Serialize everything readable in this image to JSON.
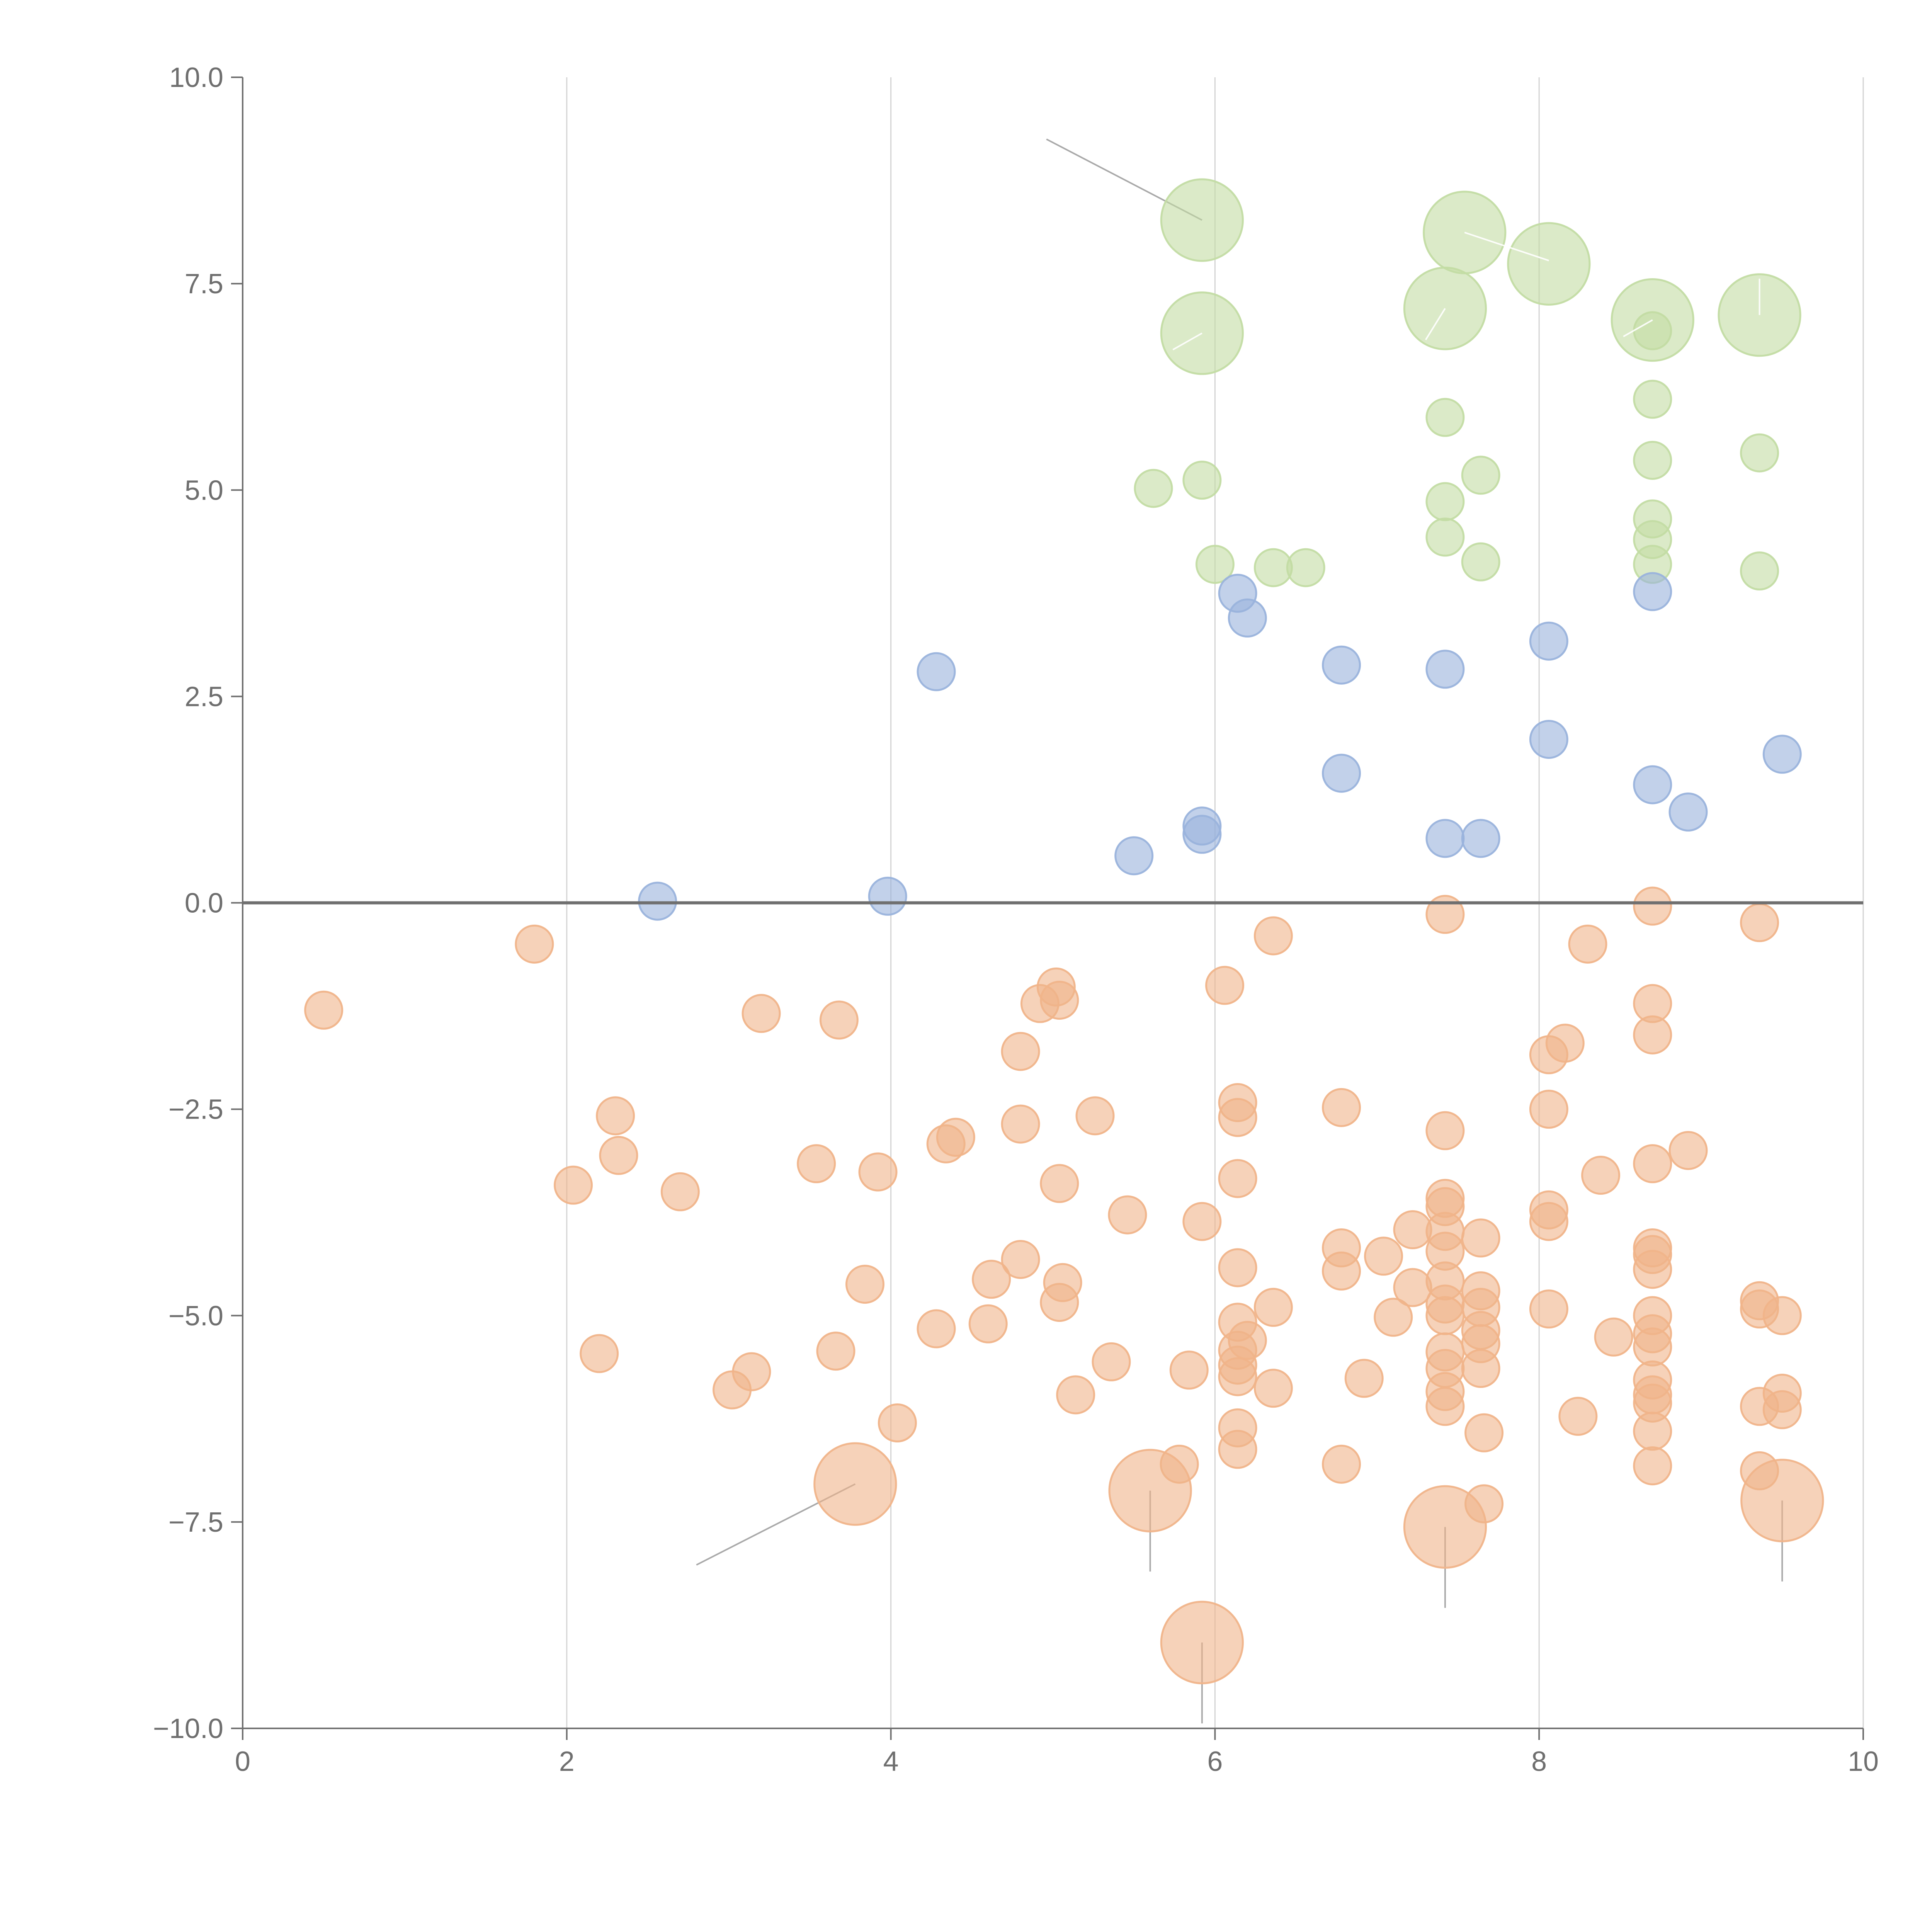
{
  "colors": {
    "positive": "#9ab3dc",
    "negative": "#f0b48a",
    "high": "#c3dca4",
    "axis": "#6f6f6f",
    "grid": "#d3d3d3"
  },
  "chart_data": {
    "type": "scatter",
    "title": "",
    "xlabel": "",
    "ylabel": "",
    "xlim": [
      0,
      10
    ],
    "ylim": [
      -10,
      10
    ],
    "x_ticks": [
      0,
      2,
      4,
      6,
      8,
      10
    ],
    "y_ticks": [
      10.0,
      7.5,
      5.0,
      2.5,
      0.0,
      -2.5,
      -5.0,
      -7.5,
      -10.0
    ],
    "x_tick_labels": [
      "0",
      "2",
      "4",
      "6",
      "8",
      "10"
    ],
    "y_tick_labels": [
      "10.0",
      "7.5",
      "5.0",
      "2.5",
      "0.0",
      "−2.5",
      "−5.0",
      "−7.5",
      "−10.0"
    ],
    "grid": {
      "x": true,
      "y": false
    },
    "zero_line": true,
    "legend": false,
    "series": [
      {
        "color_key": "high",
        "points": [
          [
            5.62,
            5.02,
            1
          ],
          [
            5.92,
            5.12,
            1
          ],
          [
            6.0,
            4.1,
            1
          ],
          [
            6.36,
            4.06,
            1
          ],
          [
            6.56,
            4.06,
            1
          ],
          [
            7.42,
            5.88,
            1
          ],
          [
            7.42,
            4.86,
            1
          ],
          [
            7.42,
            4.43,
            1
          ],
          [
            7.64,
            5.18,
            1
          ],
          [
            7.64,
            4.13,
            1
          ],
          [
            8.7,
            6.93,
            1
          ],
          [
            8.7,
            6.1,
            1
          ],
          [
            8.7,
            5.36,
            1
          ],
          [
            8.7,
            4.65,
            1
          ],
          [
            8.7,
            4.4,
            1
          ],
          [
            8.7,
            4.1,
            1
          ],
          [
            9.36,
            5.45,
            1
          ],
          [
            9.36,
            4.02,
            1
          ],
          [
            5.92,
            8.27,
            2.2
          ],
          [
            5.92,
            6.9,
            2.2
          ],
          [
            7.42,
            7.2,
            2.2
          ],
          [
            7.54,
            8.12,
            2.2
          ],
          [
            8.06,
            7.74,
            2.2
          ],
          [
            8.7,
            7.06,
            2.2
          ],
          [
            9.36,
            7.12,
            2.2
          ]
        ]
      },
      {
        "color_key": "positive",
        "points": [
          [
            2.56,
            0.02,
            1
          ],
          [
            3.98,
            0.08,
            1
          ],
          [
            4.28,
            2.8,
            1
          ],
          [
            5.5,
            0.57,
            1
          ],
          [
            5.92,
            0.93,
            1
          ],
          [
            5.92,
            0.83,
            1
          ],
          [
            6.14,
            3.75,
            1
          ],
          [
            6.2,
            3.45,
            1
          ],
          [
            6.78,
            2.88,
            1
          ],
          [
            6.78,
            1.57,
            1
          ],
          [
            7.42,
            2.83,
            1
          ],
          [
            7.42,
            0.78,
            1
          ],
          [
            7.64,
            0.78,
            1
          ],
          [
            8.06,
            3.17,
            1
          ],
          [
            8.06,
            1.98,
            1
          ],
          [
            8.7,
            3.77,
            1
          ],
          [
            8.7,
            1.43,
            1
          ],
          [
            8.92,
            1.1,
            1
          ],
          [
            9.5,
            1.8,
            1
          ]
        ]
      },
      {
        "color_key": "negative",
        "points": [
          [
            0.5,
            -1.3,
            1
          ],
          [
            1.8,
            -0.5,
            1
          ],
          [
            2.04,
            -3.42,
            1
          ],
          [
            2.2,
            -5.46,
            1
          ],
          [
            2.3,
            -2.58,
            1
          ],
          [
            2.32,
            -3.06,
            1
          ],
          [
            2.7,
            -3.5,
            1
          ],
          [
            3.02,
            -5.9,
            1
          ],
          [
            3.14,
            -5.68,
            1
          ],
          [
            3.2,
            -1.34,
            1
          ],
          [
            3.54,
            -3.16,
            1
          ],
          [
            3.66,
            -5.43,
            1
          ],
          [
            3.68,
            -1.42,
            1
          ],
          [
            3.84,
            -4.62,
            1
          ],
          [
            3.92,
            -3.26,
            1
          ],
          [
            4.04,
            -6.3,
            1
          ],
          [
            4.28,
            -5.16,
            1
          ],
          [
            4.34,
            -2.92,
            1
          ],
          [
            4.4,
            -2.84,
            1
          ],
          [
            4.6,
            -5.1,
            1
          ],
          [
            4.62,
            -4.56,
            1
          ],
          [
            4.8,
            -1.8,
            1
          ],
          [
            4.8,
            -2.68,
            1
          ],
          [
            4.8,
            -4.32,
            1
          ],
          [
            4.92,
            -1.22,
            1
          ],
          [
            5.02,
            -1.02,
            1
          ],
          [
            5.04,
            -1.18,
            1
          ],
          [
            5.04,
            -3.4,
            1
          ],
          [
            5.04,
            -4.84,
            1
          ],
          [
            5.06,
            -4.6,
            1
          ],
          [
            5.14,
            -5.96,
            1
          ],
          [
            5.26,
            -2.58,
            1
          ],
          [
            5.36,
            -5.56,
            1
          ],
          [
            5.46,
            -3.78,
            1
          ],
          [
            5.78,
            -6.8,
            1
          ],
          [
            5.84,
            -5.66,
            1
          ],
          [
            5.92,
            -3.86,
            1
          ],
          [
            6.06,
            -1.0,
            1
          ],
          [
            6.14,
            -2.42,
            1
          ],
          [
            6.14,
            -2.6,
            1
          ],
          [
            6.14,
            -3.34,
            1
          ],
          [
            6.14,
            -4.42,
            1
          ],
          [
            6.14,
            -5.08,
            1
          ],
          [
            6.14,
            -5.42,
            1
          ],
          [
            6.14,
            -5.6,
            1
          ],
          [
            6.14,
            -5.74,
            1
          ],
          [
            6.14,
            -6.36,
            1
          ],
          [
            6.14,
            -6.62,
            1
          ],
          [
            6.2,
            -5.3,
            1
          ],
          [
            6.36,
            -0.4,
            1
          ],
          [
            6.36,
            -4.9,
            1
          ],
          [
            6.36,
            -5.88,
            1
          ],
          [
            6.78,
            -2.48,
            1
          ],
          [
            6.78,
            -4.18,
            1
          ],
          [
            6.78,
            -4.46,
            1
          ],
          [
            6.78,
            -6.8,
            1
          ],
          [
            6.92,
            -5.76,
            1
          ],
          [
            7.04,
            -4.28,
            1
          ],
          [
            7.1,
            -5.02,
            1
          ],
          [
            7.22,
            -3.96,
            1
          ],
          [
            7.22,
            -4.66,
            1
          ],
          [
            7.42,
            -0.14,
            1
          ],
          [
            7.42,
            -2.76,
            1
          ],
          [
            7.42,
            -3.58,
            1
          ],
          [
            7.42,
            -3.68,
            1
          ],
          [
            7.42,
            -3.98,
            1
          ],
          [
            7.42,
            -4.22,
            1
          ],
          [
            7.42,
            -4.58,
            1
          ],
          [
            7.42,
            -4.86,
            1
          ],
          [
            7.42,
            -5.0,
            1
          ],
          [
            7.42,
            -5.44,
            1
          ],
          [
            7.42,
            -5.64,
            1
          ],
          [
            7.42,
            -5.92,
            1
          ],
          [
            7.42,
            -6.1,
            1
          ],
          [
            7.64,
            -4.06,
            1
          ],
          [
            7.64,
            -4.7,
            1
          ],
          [
            7.64,
            -4.9,
            1
          ],
          [
            7.64,
            -5.18,
            1
          ],
          [
            7.64,
            -5.34,
            1
          ],
          [
            7.64,
            -5.64,
            1
          ],
          [
            7.66,
            -6.42,
            1
          ],
          [
            7.66,
            -7.28,
            1
          ],
          [
            8.06,
            -1.84,
            1
          ],
          [
            8.06,
            -2.5,
            1
          ],
          [
            8.06,
            -3.72,
            1
          ],
          [
            8.06,
            -3.86,
            1
          ],
          [
            8.06,
            -4.92,
            1
          ],
          [
            8.16,
            -1.7,
            1
          ],
          [
            8.24,
            -6.22,
            1
          ],
          [
            8.3,
            -0.5,
            1
          ],
          [
            8.38,
            -3.3,
            1
          ],
          [
            8.46,
            -5.26,
            1
          ],
          [
            8.7,
            -0.04,
            1
          ],
          [
            8.7,
            -1.22,
            1
          ],
          [
            8.7,
            -1.6,
            1
          ],
          [
            8.7,
            -3.16,
            1
          ],
          [
            8.7,
            -4.18,
            1
          ],
          [
            8.7,
            -4.26,
            1
          ],
          [
            8.7,
            -4.44,
            1
          ],
          [
            8.7,
            -5.0,
            1
          ],
          [
            8.7,
            -5.22,
            1
          ],
          [
            8.7,
            -5.38,
            1
          ],
          [
            8.7,
            -5.78,
            1
          ],
          [
            8.7,
            -5.96,
            1
          ],
          [
            8.7,
            -6.06,
            1
          ],
          [
            8.7,
            -6.4,
            1
          ],
          [
            8.7,
            -6.82,
            1
          ],
          [
            8.92,
            -3.0,
            1
          ],
          [
            9.36,
            -0.24,
            1
          ],
          [
            9.36,
            -4.82,
            1
          ],
          [
            9.36,
            -4.92,
            1
          ],
          [
            9.36,
            -6.1,
            1
          ],
          [
            9.36,
            -6.88,
            1
          ],
          [
            9.5,
            -5.0,
            1
          ],
          [
            9.5,
            -5.94,
            1
          ],
          [
            9.5,
            -6.14,
            1
          ],
          [
            3.78,
            -7.04,
            2.2
          ],
          [
            5.6,
            -7.12,
            2.2
          ],
          [
            5.92,
            -8.96,
            2.2
          ],
          [
            7.42,
            -7.56,
            2.2
          ],
          [
            9.5,
            -7.24,
            2.2
          ]
        ]
      }
    ],
    "leader_lines": [
      {
        "style": "dark",
        "from": [
          5.92,
          8.27
        ],
        "to": [
          4.96,
          9.25
        ]
      },
      {
        "style": "dark",
        "from": [
          3.78,
          -7.04
        ],
        "to": [
          2.8,
          -8.02
        ]
      },
      {
        "style": "dark",
        "from": [
          5.6,
          -7.12
        ],
        "to": [
          5.6,
          -8.1
        ]
      },
      {
        "style": "dark",
        "from": [
          5.92,
          -8.96
        ],
        "to": [
          5.92,
          -9.94
        ]
      },
      {
        "style": "dark",
        "from": [
          7.42,
          -7.56
        ],
        "to": [
          7.42,
          -8.54
        ]
      },
      {
        "style": "dark",
        "from": [
          9.5,
          -7.24
        ],
        "to": [
          9.5,
          -8.22
        ]
      },
      {
        "style": "light",
        "from": [
          5.92,
          6.9
        ],
        "to": [
          5.74,
          6.7
        ]
      },
      {
        "style": "light",
        "from": [
          7.42,
          7.2
        ],
        "to": [
          7.3,
          6.82
        ]
      },
      {
        "style": "light",
        "from": [
          7.54,
          8.12
        ],
        "to": [
          8.06,
          7.78
        ]
      },
      {
        "style": "light",
        "from": [
          8.7,
          7.06
        ],
        "to": [
          8.52,
          6.86
        ]
      },
      {
        "style": "light",
        "from": [
          9.36,
          7.12
        ],
        "to": [
          9.36,
          7.56
        ]
      }
    ]
  }
}
